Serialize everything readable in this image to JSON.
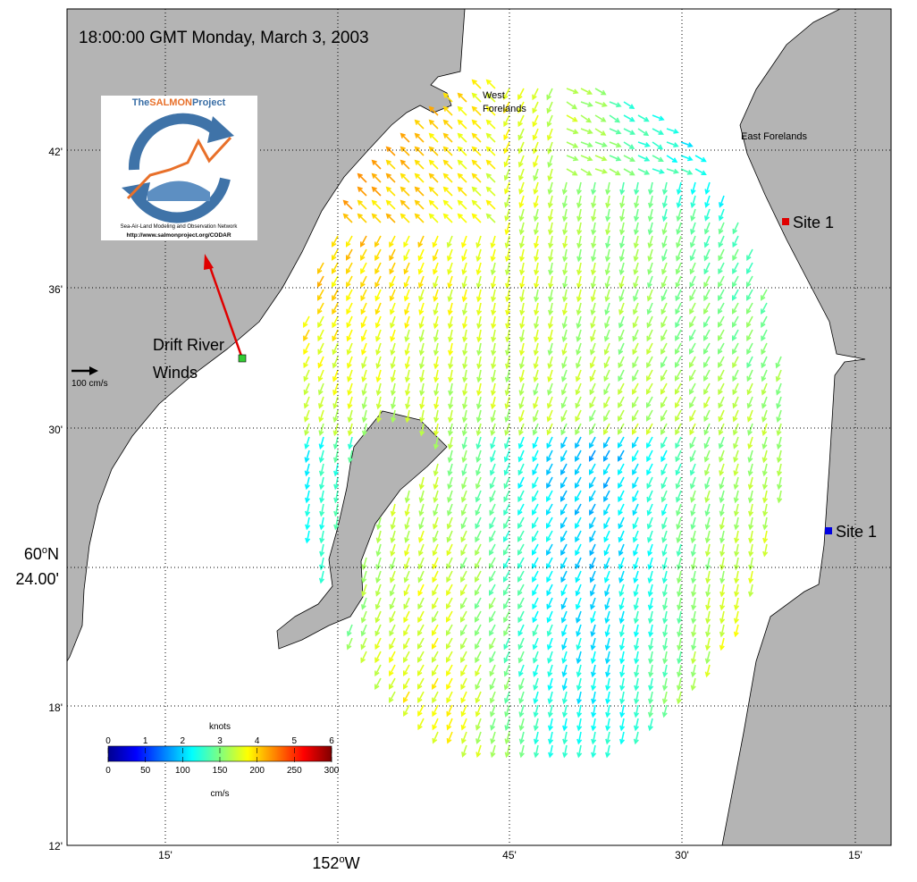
{
  "title": "18:00:00 GMT Monday, March 3, 2003",
  "logo": {
    "name_prefix": "The",
    "name_highlight": "SALMON",
    "name_suffix": "Project",
    "tagline": "Sea-Air-Land Modeling and Observation Network",
    "url": "http://www.salmonproject.org/CODAR"
  },
  "places": {
    "west": [
      "West",
      "Forelands"
    ],
    "east": "East Forelands",
    "site_red": "Site 1",
    "site_blue": "Site 1",
    "drift": [
      "Drift River",
      "Winds"
    ]
  },
  "scale_arrow": "100 cm/s",
  "lat_labels": [
    "42'",
    "36'",
    "30'",
    "18'",
    "12'"
  ],
  "lat_center": {
    "deg": "60",
    "sup": "o",
    "hem": "N",
    "min": "24.00'"
  },
  "lon_labels": [
    "15'",
    "45'",
    "30'",
    "15'"
  ],
  "lon_center": {
    "deg": "152",
    "sup": "o",
    "hem": "W"
  },
  "colorbar": {
    "top_title": "knots",
    "bottom_title": "cm/s",
    "knots_ticks": [
      0,
      1,
      2,
      3,
      4,
      5,
      6
    ],
    "cms_ticks": [
      0,
      50,
      100,
      150,
      200,
      250,
      300
    ]
  }
}
